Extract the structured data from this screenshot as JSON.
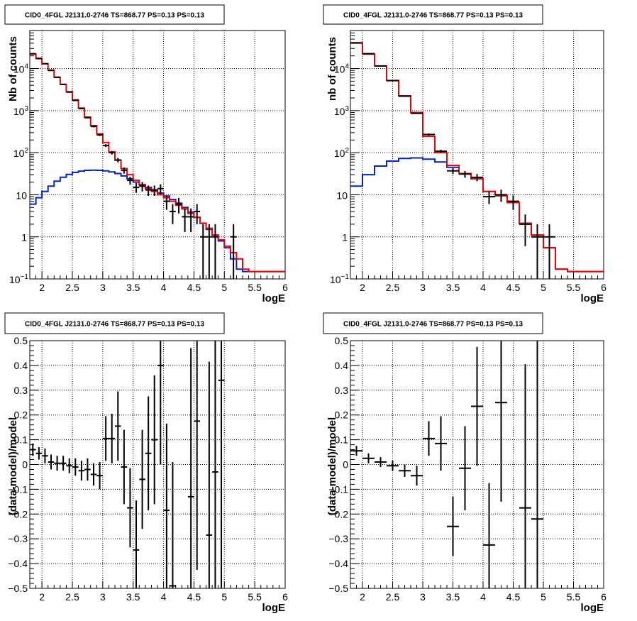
{
  "colors": {
    "model_total": "#ee0000",
    "model_source": "#0022cc",
    "data": "#000000",
    "grid": "#000000"
  },
  "chart_data": [
    {
      "type": "step-histogram",
      "title": "CID0_4FGL J2131.0-2746 TS=868.77 PS=0.13 PS=0.13",
      "xlabel": "logE",
      "ylabel": "Nb of counts",
      "xlim": [
        1.8,
        6.0
      ],
      "ylim": [
        0.1,
        80000
      ],
      "yscale": "log",
      "grid": true,
      "xticks": [
        "2",
        "2.5",
        "3",
        "3.5",
        "4",
        "4.5",
        "5",
        "5.5",
        "6"
      ],
      "yticks": [
        {
          "v": 0.1,
          "base": "10",
          "exp": "−1"
        },
        {
          "v": 1,
          "base": "1",
          "exp": ""
        },
        {
          "v": 10,
          "base": "10",
          "exp": ""
        },
        {
          "v": 100,
          "base": "10",
          "exp": "2"
        },
        {
          "v": 1000,
          "base": "10",
          "exp": "3"
        },
        {
          "v": 10000,
          "base": "10",
          "exp": "4"
        }
      ],
      "bin_edges": [
        1.8,
        1.9,
        2.0,
        2.1,
        2.2,
        2.3,
        2.4,
        2.5,
        2.6,
        2.7,
        2.8,
        2.9,
        3.0,
        3.1,
        3.2,
        3.3,
        3.4,
        3.5,
        3.6,
        3.7,
        3.8,
        3.9,
        4.0,
        4.1,
        4.2,
        4.3,
        4.4,
        4.5,
        4.6,
        4.7,
        4.8,
        4.9,
        5.0,
        5.1,
        5.2,
        5.3,
        5.4,
        5.5,
        5.6,
        5.7,
        5.8,
        5.9,
        6.0
      ],
      "model_total": [
        22000,
        17500,
        13000,
        9200,
        6200,
        4200,
        2800,
        1800,
        1150,
        700,
        440,
        280,
        175,
        105,
        66,
        42,
        30,
        22,
        17.5,
        14,
        12,
        10,
        8.5,
        7,
        5.6,
        4.6,
        3.6,
        2.9,
        2.1,
        1.6,
        1.1,
        0.85,
        0.6,
        0.42,
        0.3,
        0.17,
        0.15,
        0.15,
        0.15,
        0.15,
        0.15,
        0.15
      ],
      "model_source": [
        6,
        8.5,
        12,
        16,
        21,
        26,
        30.5,
        34,
        36.5,
        38,
        38.5,
        38,
        37,
        35,
        32,
        28,
        24,
        20,
        17,
        15,
        13,
        11,
        9.3,
        7.7,
        6.3,
        5,
        3.9,
        2.9,
        2.1,
        1.5,
        1.1,
        0.8,
        0.55,
        0.3,
        0.17,
        0.15,
        0.15,
        0.15,
        0.15,
        0.15,
        0.15,
        0.15
      ],
      "data_points": [
        {
          "x": 1.85,
          "y": 22500,
          "yerr": 150
        },
        {
          "x": 1.95,
          "y": 17200,
          "yerr": 130
        },
        {
          "x": 2.05,
          "y": 13000,
          "yerr": 115
        },
        {
          "x": 2.15,
          "y": 9000,
          "yerr": 95
        },
        {
          "x": 2.25,
          "y": 6200,
          "yerr": 80
        },
        {
          "x": 2.35,
          "y": 4200,
          "yerr": 65
        },
        {
          "x": 2.45,
          "y": 2750,
          "yerr": 52
        },
        {
          "x": 2.55,
          "y": 1750,
          "yerr": 42
        },
        {
          "x": 2.65,
          "y": 1120,
          "yerr": 33
        },
        {
          "x": 2.75,
          "y": 680,
          "yerr": 26
        },
        {
          "x": 2.85,
          "y": 420,
          "yerr": 20
        },
        {
          "x": 2.95,
          "y": 265,
          "yerr": 16
        },
        {
          "x": 3.05,
          "y": 148,
          "yerr": 12
        },
        {
          "x": 3.15,
          "y": 100,
          "yerr": 10
        },
        {
          "x": 3.25,
          "y": 67,
          "yerr": 8.2
        },
        {
          "x": 3.35,
          "y": 38,
          "yerr": 6.2
        },
        {
          "x": 3.45,
          "y": 22,
          "yerr": 4.7
        },
        {
          "x": 3.55,
          "y": 15,
          "yerr": 3.9
        },
        {
          "x": 3.65,
          "y": 16,
          "yerr": 4
        },
        {
          "x": 3.75,
          "y": 13,
          "yerr": 3.6
        },
        {
          "x": 3.85,
          "y": 13,
          "yerr": 3.6
        },
        {
          "x": 3.95,
          "y": 14,
          "yerr": 3.7
        },
        {
          "x": 4.05,
          "y": 7,
          "yerr": 2.6
        },
        {
          "x": 4.15,
          "y": 4,
          "yerr": 2
        },
        {
          "x": 4.25,
          "y": 6,
          "yerr": 2.4
        },
        {
          "x": 4.35,
          "y": 3,
          "yerr": 1.7
        },
        {
          "x": 4.45,
          "y": 3,
          "yerr": 1.7
        },
        {
          "x": 4.55,
          "y": 4,
          "yerr": 2
        },
        {
          "x": 4.65,
          "y": 1,
          "yerr": 1
        },
        {
          "x": 4.75,
          "y": 1,
          "yerr": 1
        },
        {
          "x": 4.85,
          "y": 1,
          "yerr": 1
        },
        {
          "x": 5.15,
          "y": 1,
          "yerr": 1
        }
      ]
    },
    {
      "type": "step-histogram",
      "title": "CID0_4FGL J2131.0-2746 TS=868.77 PS=0.13 PS=0.13",
      "xlabel": "logE",
      "ylabel": "nb of counts",
      "xlim": [
        1.8,
        6.0
      ],
      "ylim": [
        0.1,
        80000
      ],
      "yscale": "log",
      "grid": true,
      "xticks": [
        "2",
        "2.5",
        "3",
        "3.5",
        "4",
        "4.5",
        "5",
        "5.5",
        "6"
      ],
      "yticks": [
        {
          "v": 0.1,
          "base": "10",
          "exp": "−1"
        },
        {
          "v": 1,
          "base": "1",
          "exp": ""
        },
        {
          "v": 10,
          "base": "10",
          "exp": ""
        },
        {
          "v": 100,
          "base": "10",
          "exp": "2"
        },
        {
          "v": 1000,
          "base": "10",
          "exp": "3"
        },
        {
          "v": 10000,
          "base": "10",
          "exp": "4"
        }
      ],
      "bin_edges": [
        1.8,
        2.0,
        2.2,
        2.4,
        2.6,
        2.8,
        3.0,
        3.2,
        3.4,
        3.6,
        3.8,
        4.0,
        4.2,
        4.4,
        4.6,
        4.8,
        5.0,
        5.2,
        5.4,
        5.6,
        5.8,
        6.0
      ],
      "model_total": [
        40000,
        22000,
        11500,
        5200,
        2250,
        900,
        245,
        100,
        50,
        32,
        24,
        12,
        9.5,
        6.5,
        2.1,
        1.1,
        0.55,
        0.17,
        0.15,
        0.15,
        0.15
      ],
      "model_source": [
        16,
        30,
        48,
        63,
        73,
        75,
        70,
        60,
        45,
        32,
        24,
        12,
        9.5,
        6.5,
        2.1,
        1.1,
        0.55,
        0.17,
        0.15,
        0.15,
        0.15
      ],
      "data_points": [
        {
          "x": 1.9,
          "y": 41000,
          "yerr": 200
        },
        {
          "x": 2.1,
          "y": 22500,
          "yerr": 150
        },
        {
          "x": 2.3,
          "y": 11500,
          "yerr": 107
        },
        {
          "x": 2.5,
          "y": 5150,
          "yerr": 72
        },
        {
          "x": 2.7,
          "y": 2200,
          "yerr": 47
        },
        {
          "x": 2.9,
          "y": 860,
          "yerr": 29
        },
        {
          "x": 3.1,
          "y": 270,
          "yerr": 16
        },
        {
          "x": 3.3,
          "y": 108,
          "yerr": 10
        },
        {
          "x": 3.5,
          "y": 37,
          "yerr": 6
        },
        {
          "x": 3.7,
          "y": 31,
          "yerr": 5.6
        },
        {
          "x": 3.9,
          "y": 26,
          "yerr": 5.1
        },
        {
          "x": 4.1,
          "y": 9,
          "yerr": 3
        },
        {
          "x": 4.3,
          "y": 10,
          "yerr": 3.2
        },
        {
          "x": 4.5,
          "y": 7,
          "yerr": 2.6
        },
        {
          "x": 4.7,
          "y": 2,
          "yerr": 1.4
        },
        {
          "x": 4.9,
          "y": 1,
          "yerr": 1
        },
        {
          "x": 5.1,
          "y": 1,
          "yerr": 1
        }
      ]
    },
    {
      "type": "scatter-errorbar",
      "title": "CID0_4FGL J2131.0-2746 TS=868.77 PS=0.13 PS=0.13",
      "xlabel": "logE",
      "ylabel": "(data-model)/model",
      "xlim": [
        1.8,
        6.0
      ],
      "ylim": [
        -0.5,
        0.5
      ],
      "grid": true,
      "xticks": [
        "2",
        "2.5",
        "3",
        "3.5",
        "4",
        "4.5",
        "5",
        "5.5",
        "6"
      ],
      "yticks": [
        "−0.5",
        "−0.4",
        "−0.3",
        "−0.2",
        "−0.1",
        "0",
        "0.1",
        "0.2",
        "0.3",
        "0.4",
        "0.5"
      ],
      "xhalfwidth": 0.05,
      "points": [
        {
          "x": 1.85,
          "y": 0.06,
          "err": 0.025
        },
        {
          "x": 1.95,
          "y": 0.045,
          "err": 0.025
        },
        {
          "x": 2.05,
          "y": 0.035,
          "err": 0.03
        },
        {
          "x": 2.15,
          "y": 0.01,
          "err": 0.03
        },
        {
          "x": 2.25,
          "y": 0.005,
          "err": 0.03
        },
        {
          "x": 2.35,
          "y": 0.005,
          "err": 0.03
        },
        {
          "x": 2.45,
          "y": -0.005,
          "err": 0.03
        },
        {
          "x": 2.55,
          "y": -0.01,
          "err": 0.035
        },
        {
          "x": 2.65,
          "y": -0.025,
          "err": 0.04
        },
        {
          "x": 2.75,
          "y": -0.02,
          "err": 0.045
        },
        {
          "x": 2.85,
          "y": -0.04,
          "err": 0.045
        },
        {
          "x": 2.95,
          "y": -0.045,
          "err": 0.055
        },
        {
          "x": 3.05,
          "y": 0.105,
          "err": 0.09
        },
        {
          "x": 3.15,
          "y": 0.105,
          "err": 0.1
        },
        {
          "x": 3.25,
          "y": 0.155,
          "err": 0.14
        },
        {
          "x": 3.35,
          "y": -0.01,
          "err": 0.15
        },
        {
          "x": 3.45,
          "y": -0.175,
          "err": 0.16
        },
        {
          "x": 3.55,
          "y": -0.345,
          "err": 0.2
        },
        {
          "x": 3.65,
          "y": -0.06,
          "err": 0.2
        },
        {
          "x": 3.75,
          "y": 0.045,
          "err": 0.23
        },
        {
          "x": 3.85,
          "y": 0.1,
          "err": 0.26
        },
        {
          "x": 3.95,
          "y": 0.4,
          "err": 0.4
        },
        {
          "x": 4.05,
          "y": -0.185,
          "err": 0.35
        },
        {
          "x": 4.15,
          "y": -0.49,
          "err": 0.5
        },
        {
          "x": 4.45,
          "y": -0.13,
          "err": 0.6
        },
        {
          "x": 4.55,
          "y": 0.175,
          "err": 0.6
        },
        {
          "x": 4.75,
          "y": -0.285,
          "err": 0.7
        },
        {
          "x": 4.85,
          "y": -0.03,
          "err": 1.0
        },
        {
          "x": 4.95,
          "y": 0.34,
          "err": 1.0
        }
      ]
    },
    {
      "type": "scatter-errorbar",
      "title": "CID0_4FGL J2131.0-2746 TS=868.77 PS=0.13 PS=0.13",
      "xlabel": "logE",
      "ylabel": "(data-model)/model",
      "xlim": [
        1.8,
        6.0
      ],
      "ylim": [
        -0.5,
        0.5
      ],
      "grid": true,
      "xticks": [
        "2",
        "2.5",
        "3",
        "3.5",
        "4",
        "4.5",
        "5",
        "5.5",
        "6"
      ],
      "yticks": [
        "−0.5",
        "−0.4",
        "−0.3",
        "−0.2",
        "−0.1",
        "0",
        "0.1",
        "0.2",
        "0.3",
        "0.4",
        "0.5"
      ],
      "xhalfwidth": 0.1,
      "points": [
        {
          "x": 1.9,
          "y": 0.055,
          "err": 0.02
        },
        {
          "x": 2.1,
          "y": 0.025,
          "err": 0.02
        },
        {
          "x": 2.3,
          "y": 0.01,
          "err": 0.02
        },
        {
          "x": 2.5,
          "y": -0.005,
          "err": 0.02
        },
        {
          "x": 2.7,
          "y": -0.025,
          "err": 0.025
        },
        {
          "x": 2.9,
          "y": -0.045,
          "err": 0.04
        },
        {
          "x": 3.1,
          "y": 0.105,
          "err": 0.07
        },
        {
          "x": 3.3,
          "y": 0.085,
          "err": 0.11
        },
        {
          "x": 3.5,
          "y": -0.25,
          "err": 0.12
        },
        {
          "x": 3.7,
          "y": -0.015,
          "err": 0.17
        },
        {
          "x": 3.9,
          "y": 0.235,
          "err": 0.24
        },
        {
          "x": 4.1,
          "y": -0.325,
          "err": 0.25
        },
        {
          "x": 4.3,
          "y": 0.25,
          "err": 0.4
        },
        {
          "x": 4.7,
          "y": -0.175,
          "err": 0.58
        },
        {
          "x": 4.9,
          "y": -0.22,
          "err": 0.8
        }
      ]
    }
  ]
}
